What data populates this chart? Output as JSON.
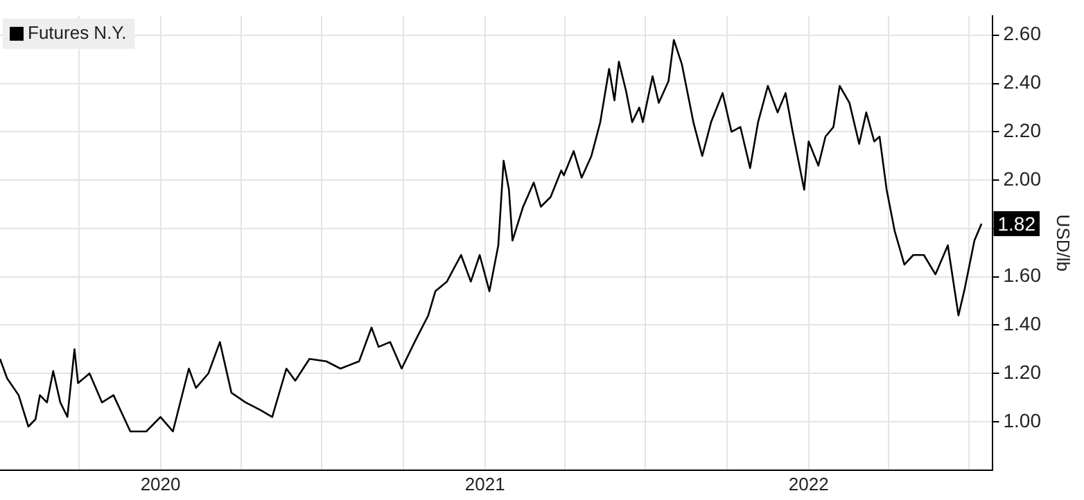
{
  "chart_data": {
    "type": "line",
    "ylabel": "USD/lb",
    "legend": "top left",
    "grid": true,
    "marker": "none",
    "line_style": "solid",
    "xlim": [
      "2019-07-04",
      "2022-07-27"
    ],
    "xticks": [
      {
        "value": "2019-10-01",
        "label": null
      },
      {
        "value": "2020-01-01",
        "label": "2020"
      },
      {
        "value": "2020-04-01",
        "label": null
      },
      {
        "value": "2020-07-01",
        "label": null
      },
      {
        "value": "2020-10-01",
        "label": null
      },
      {
        "value": "2021-01-01",
        "label": "2021"
      },
      {
        "value": "2021-04-01",
        "label": null
      },
      {
        "value": "2021-07-01",
        "label": null
      },
      {
        "value": "2021-10-01",
        "label": null
      },
      {
        "value": "2022-01-01",
        "label": "2022"
      },
      {
        "value": "2022-04-01",
        "label": null
      },
      {
        "value": "2022-07-01",
        "label": null
      }
    ],
    "ylim": [
      0.8,
      2.68
    ],
    "yticks": [
      {
        "value": 1,
        "label": "1.00"
      },
      {
        "value": 1.2,
        "label": "1.20"
      },
      {
        "value": 1.4,
        "label": "1.40"
      },
      {
        "value": 1.6,
        "label": "1.60"
      },
      {
        "value": 1.8,
        "label": null
      },
      {
        "value": 2,
        "label": "2.00"
      },
      {
        "value": 2.2,
        "label": "2.20"
      },
      {
        "value": 2.4,
        "label": "2.40"
      },
      {
        "value": 2.6,
        "label": "2.60"
      }
    ],
    "annotations": [
      {
        "text": "1.82",
        "x": "2022-07-15",
        "y": 1.82
      }
    ],
    "x": [
      "2019-07-04",
      "2019-07-12",
      "2019-07-25",
      "2019-08-05",
      "2019-08-13",
      "2019-08-18",
      "2019-08-26",
      "2019-09-02",
      "2019-09-10",
      "2019-09-18",
      "2019-09-26",
      "2019-09-30",
      "2019-10-13",
      "2019-10-27",
      "2019-11-09",
      "2019-11-28",
      "2019-12-16",
      "2020-01-01",
      "2020-01-15",
      "2020-02-02",
      "2020-02-10",
      "2020-02-24",
      "2020-03-08",
      "2020-03-21",
      "2020-04-06",
      "2020-04-22",
      "2020-05-06",
      "2020-05-22",
      "2020-06-01",
      "2020-06-17",
      "2020-07-06",
      "2020-07-22",
      "2020-08-12",
      "2020-08-26",
      "2020-09-03",
      "2020-09-16",
      "2020-09-29",
      "2020-10-15",
      "2020-10-29",
      "2020-11-06",
      "2020-11-19",
      "2020-12-05",
      "2020-12-16",
      "2020-12-26",
      "2021-01-06",
      "2021-01-16",
      "2021-01-22",
      "2021-01-28",
      "2021-02-01",
      "2021-02-13",
      "2021-02-25",
      "2021-03-05",
      "2021-03-16",
      "2021-03-28",
      "2021-03-31",
      "2021-04-11",
      "2021-04-20",
      "2021-05-01",
      "2021-05-11",
      "2021-05-21",
      "2021-05-27",
      "2021-06-01",
      "2021-06-09",
      "2021-06-16",
      "2021-06-24",
      "2021-06-28",
      "2021-07-09",
      "2021-07-16",
      "2021-07-27",
      "2021-08-02",
      "2021-08-11",
      "2021-08-24",
      "2021-09-03",
      "2021-09-13",
      "2021-09-26",
      "2021-10-06",
      "2021-10-16",
      "2021-10-27",
      "2021-11-05",
      "2021-11-16",
      "2021-11-27",
      "2021-12-06",
      "2021-12-14",
      "2021-12-27",
      "2022-01-01",
      "2022-01-12",
      "2022-01-20",
      "2022-01-29",
      "2022-02-05",
      "2022-02-16",
      "2022-02-27",
      "2022-03-07",
      "2022-03-16",
      "2022-03-22",
      "2022-03-30",
      "2022-04-08",
      "2022-04-19",
      "2022-04-29",
      "2022-05-11",
      "2022-05-24",
      "2022-06-07",
      "2022-06-19",
      "2022-06-26",
      "2022-07-07",
      "2022-07-15"
    ],
    "series": [
      {
        "name": "Futures N.Y.",
        "color": "#000000",
        "values": [
          1.26,
          1.18,
          1.11,
          0.98,
          1.01,
          1.11,
          1.08,
          1.21,
          1.08,
          1.02,
          1.3,
          1.16,
          1.2,
          1.08,
          1.11,
          0.96,
          0.96,
          1.02,
          0.96,
          1.22,
          1.14,
          1.2,
          1.33,
          1.12,
          1.08,
          1.05,
          1.02,
          1.22,
          1.17,
          1.26,
          1.25,
          1.22,
          1.25,
          1.39,
          1.31,
          1.33,
          1.22,
          1.34,
          1.44,
          1.54,
          1.58,
          1.69,
          1.58,
          1.69,
          1.54,
          1.73,
          2.08,
          1.96,
          1.75,
          1.89,
          1.99,
          1.89,
          1.93,
          2.04,
          2.02,
          2.12,
          2.01,
          2.1,
          2.24,
          2.46,
          2.33,
          2.49,
          2.37,
          2.24,
          2.3,
          2.24,
          2.43,
          2.32,
          2.41,
          2.58,
          2.48,
          2.24,
          2.1,
          2.24,
          2.36,
          2.2,
          2.22,
          2.05,
          2.24,
          2.39,
          2.28,
          2.36,
          2.2,
          1.96,
          2.16,
          2.06,
          2.18,
          2.22,
          2.39,
          2.32,
          2.15,
          2.28,
          2.16,
          2.18,
          1.96,
          1.79,
          1.65,
          1.69,
          1.69,
          1.61,
          1.73,
          1.44,
          1.55,
          1.75,
          1.82
        ]
      }
    ]
  }
}
